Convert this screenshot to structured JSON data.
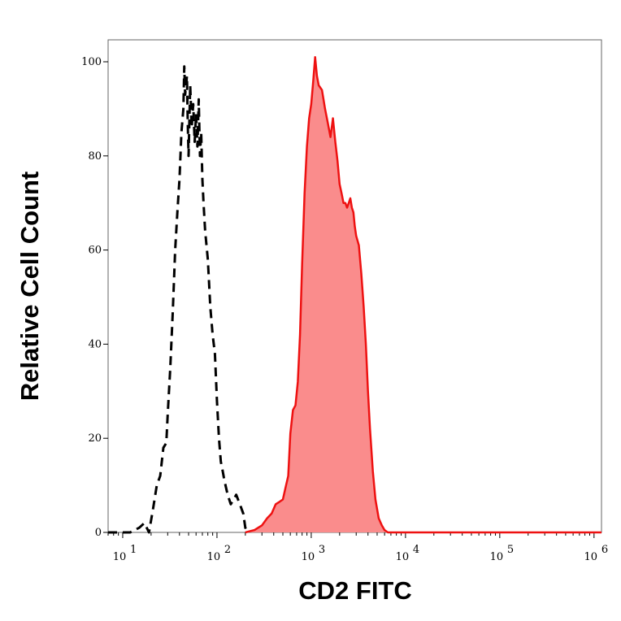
{
  "chart_data": {
    "type": "area",
    "title": "",
    "xlabel": "CD2 FITC",
    "ylabel": "Relative Cell Count",
    "xscale": "log",
    "xlim": [
      7,
      1200000
    ],
    "ylim": [
      0,
      100
    ],
    "yticks": [
      "0",
      "20",
      "40",
      "60",
      "80",
      "100"
    ],
    "xticks": [
      {
        "value": 10,
        "base": "10",
        "exp": "1"
      },
      {
        "value": 100,
        "base": "10",
        "exp": "2"
      },
      {
        "value": 1000,
        "base": "10",
        "exp": "3"
      },
      {
        "value": 10000,
        "base": "10",
        "exp": "4"
      },
      {
        "value": 100000,
        "base": "10",
        "exp": "5"
      },
      {
        "value": 1000000,
        "base": "10",
        "exp": "6"
      }
    ],
    "grid": false,
    "series": [
      {
        "style": "dashed-line",
        "color": "#000000",
        "points": [
          [
            7,
            0
          ],
          [
            12,
            0
          ],
          [
            15,
            1
          ],
          [
            17,
            2
          ],
          [
            19,
            0
          ],
          [
            21,
            5
          ],
          [
            23,
            10
          ],
          [
            25,
            12
          ],
          [
            27,
            18
          ],
          [
            29,
            19
          ],
          [
            30,
            25
          ],
          [
            32,
            35
          ],
          [
            34,
            47
          ],
          [
            36,
            60
          ],
          [
            38,
            68
          ],
          [
            40,
            75
          ],
          [
            42,
            85
          ],
          [
            44,
            90
          ],
          [
            45,
            99
          ],
          [
            46,
            93
          ],
          [
            48,
            97
          ],
          [
            49,
            87
          ],
          [
            50,
            80
          ],
          [
            52,
            95
          ],
          [
            54,
            86
          ],
          [
            56,
            91
          ],
          [
            58,
            83
          ],
          [
            60,
            89
          ],
          [
            62,
            82
          ],
          [
            64,
            92
          ],
          [
            66,
            80
          ],
          [
            68,
            85
          ],
          [
            70,
            75
          ],
          [
            72,
            70
          ],
          [
            75,
            64
          ],
          [
            80,
            58
          ],
          [
            85,
            48
          ],
          [
            90,
            42
          ],
          [
            95,
            38
          ],
          [
            100,
            28
          ],
          [
            105,
            20
          ],
          [
            110,
            15
          ],
          [
            115,
            13
          ],
          [
            120,
            11
          ],
          [
            130,
            8
          ],
          [
            140,
            6
          ],
          [
            150,
            7
          ],
          [
            160,
            8
          ],
          [
            175,
            6
          ],
          [
            190,
            4
          ],
          [
            200,
            1
          ],
          [
            210,
            0
          ]
        ]
      },
      {
        "style": "filled-area",
        "color": "#ee1111",
        "fill": "#fa8c8c",
        "points": [
          [
            200,
            0
          ],
          [
            250,
            0.5
          ],
          [
            300,
            1.5
          ],
          [
            340,
            3
          ],
          [
            380,
            4
          ],
          [
            420,
            6
          ],
          [
            460,
            6.5
          ],
          [
            500,
            7
          ],
          [
            540,
            10
          ],
          [
            570,
            12
          ],
          [
            600,
            21
          ],
          [
            640,
            26
          ],
          [
            680,
            27
          ],
          [
            720,
            32
          ],
          [
            760,
            42
          ],
          [
            800,
            57
          ],
          [
            850,
            72
          ],
          [
            900,
            82
          ],
          [
            950,
            88
          ],
          [
            1000,
            91
          ],
          [
            1050,
            96
          ],
          [
            1100,
            101
          ],
          [
            1150,
            97
          ],
          [
            1200,
            95
          ],
          [
            1300,
            94
          ],
          [
            1400,
            90
          ],
          [
            1500,
            87
          ],
          [
            1600,
            84
          ],
          [
            1700,
            88
          ],
          [
            1800,
            83
          ],
          [
            1900,
            79
          ],
          [
            2000,
            74
          ],
          [
            2100,
            72
          ],
          [
            2200,
            70
          ],
          [
            2300,
            70
          ],
          [
            2400,
            69
          ],
          [
            2500,
            70
          ],
          [
            2600,
            71
          ],
          [
            2700,
            69
          ],
          [
            2800,
            68
          ],
          [
            2900,
            65
          ],
          [
            3000,
            63
          ],
          [
            3200,
            61
          ],
          [
            3400,
            55
          ],
          [
            3600,
            48
          ],
          [
            3800,
            40
          ],
          [
            4000,
            30
          ],
          [
            4200,
            22
          ],
          [
            4500,
            13
          ],
          [
            4800,
            7
          ],
          [
            5200,
            3
          ],
          [
            5600,
            1.5
          ],
          [
            6000,
            0.5
          ],
          [
            6500,
            0
          ],
          [
            1200000,
            0
          ]
        ]
      }
    ]
  }
}
